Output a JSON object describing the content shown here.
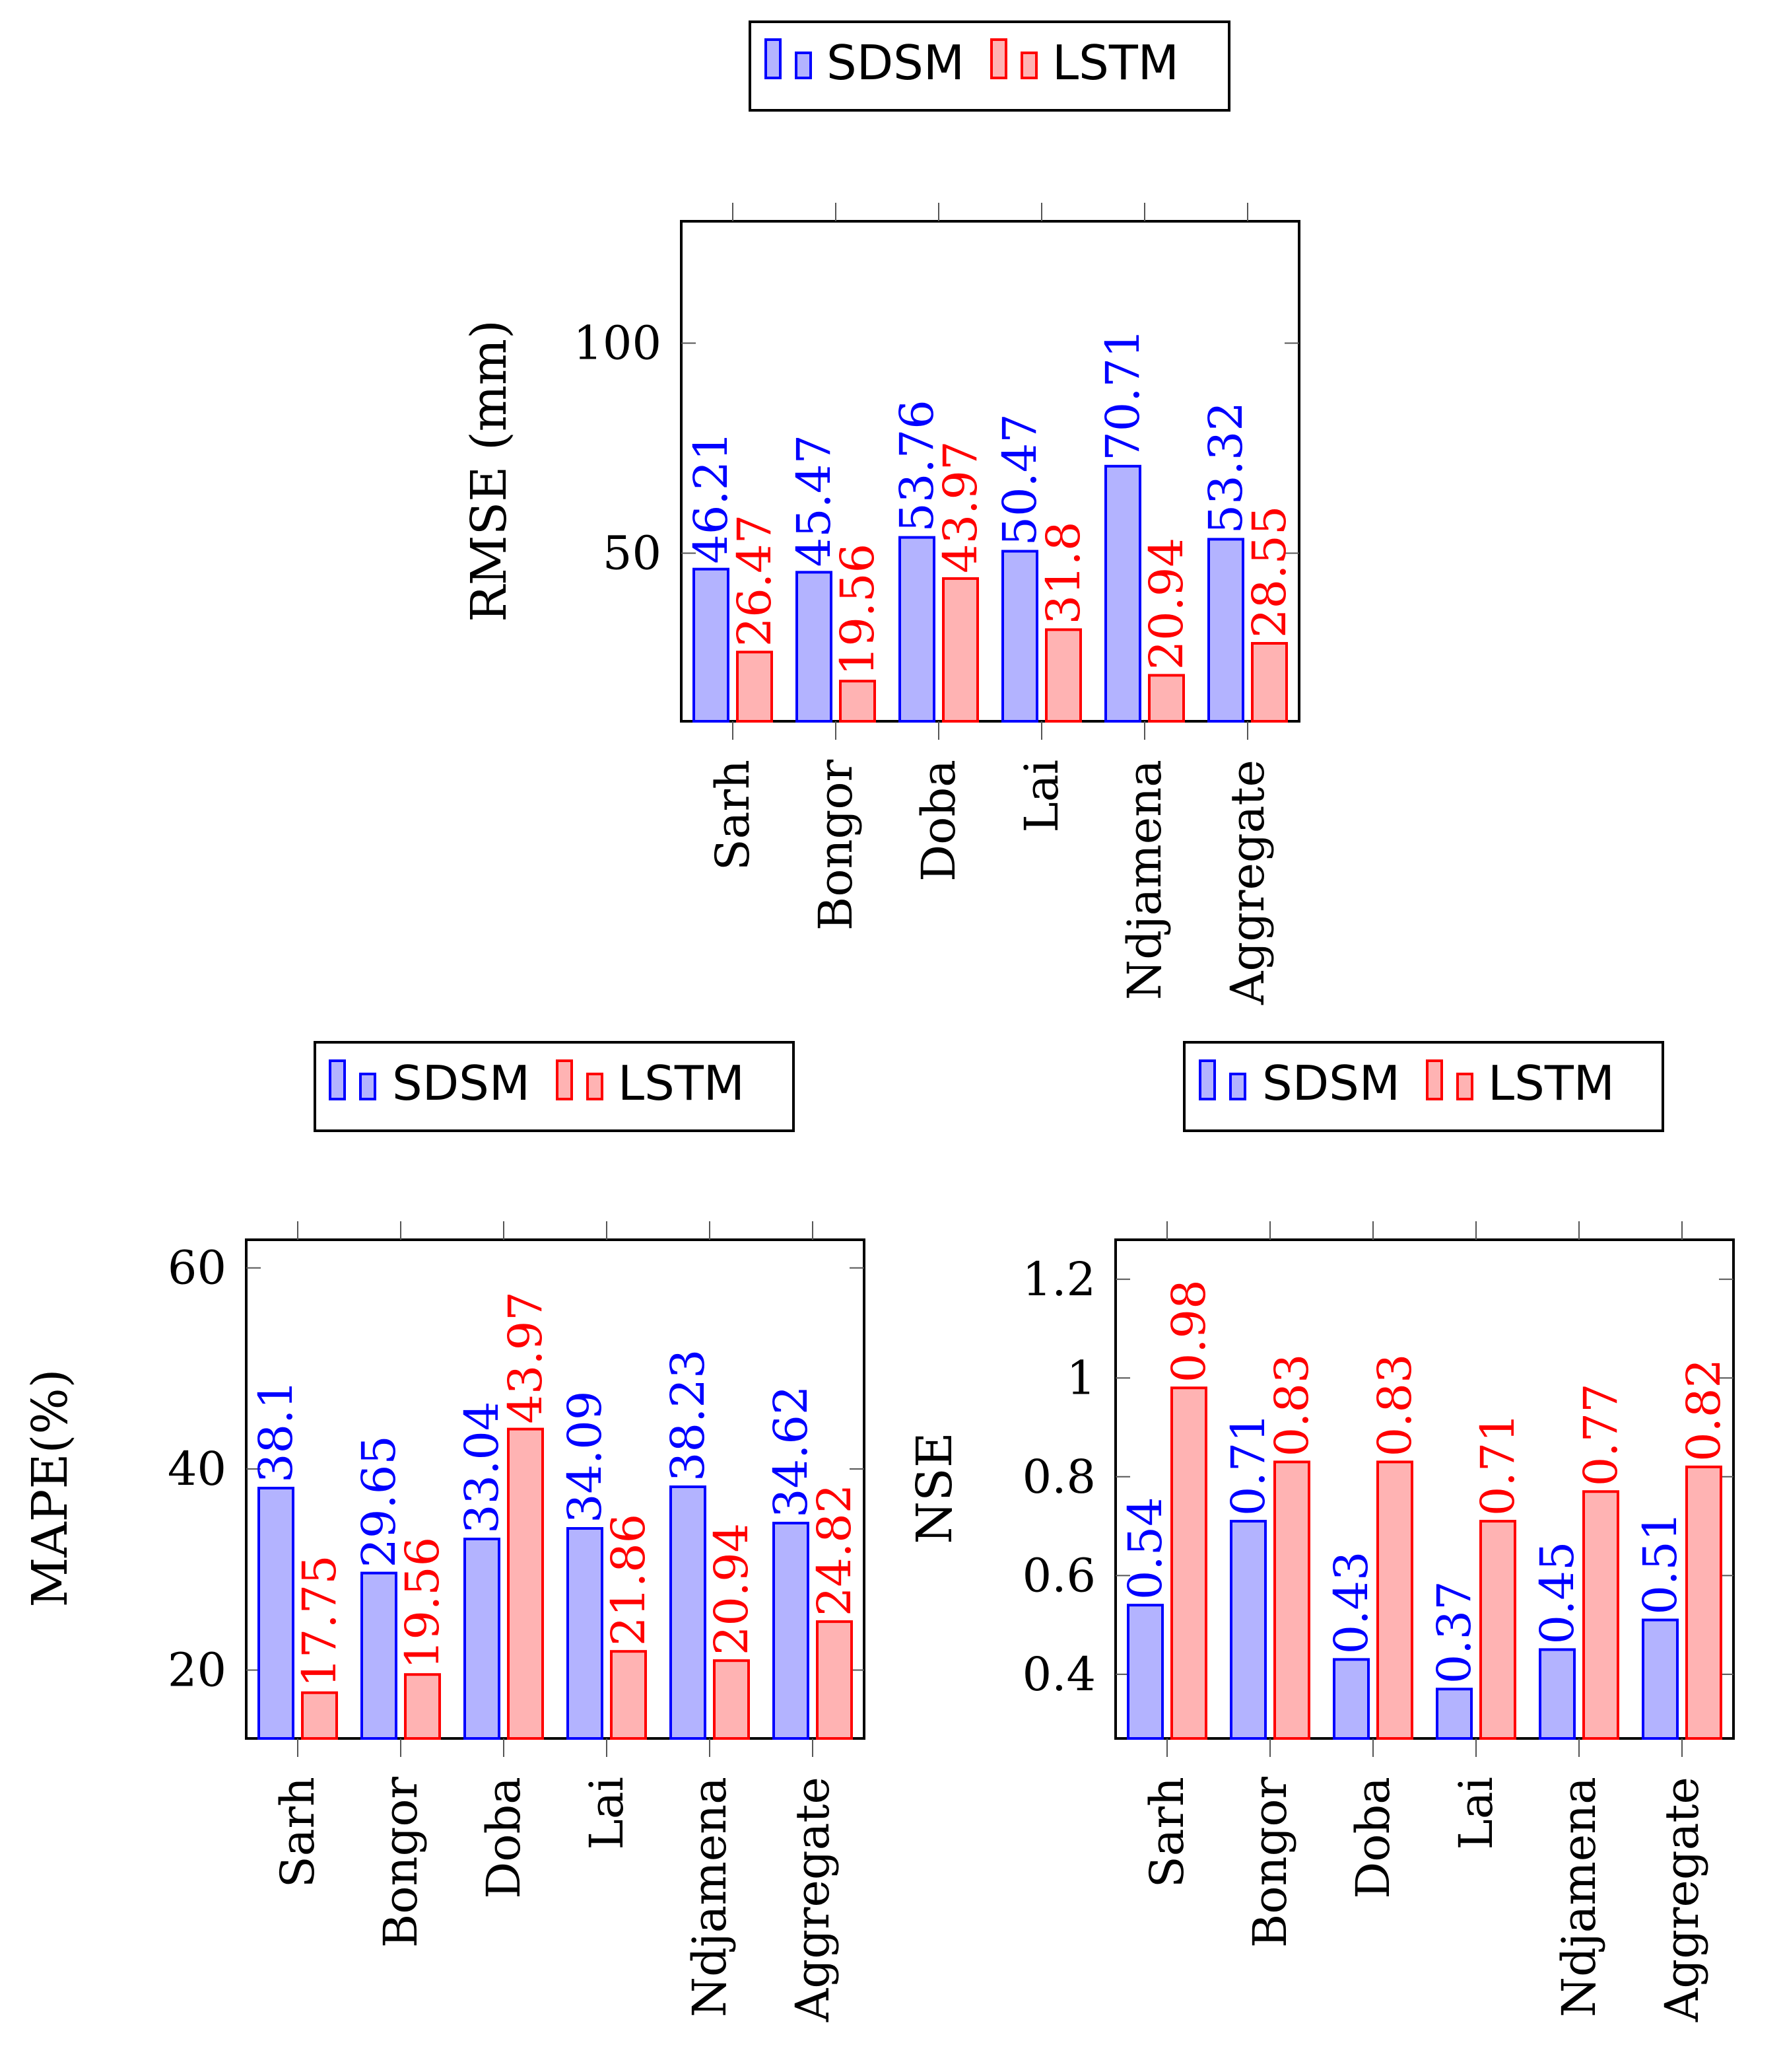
{
  "colors": {
    "sdsm_stroke": "#0000ff",
    "sdsm_fill": "#b3b3ff",
    "lstm_stroke": "#ff0000",
    "lstm_fill": "#ffb3b3",
    "axis": "#000000"
  },
  "legend": {
    "sdsm_label": "SDSM",
    "lstm_label": "LSTM"
  },
  "chart_data": [
    {
      "type": "bar",
      "ylabel": "RMSE (mm)",
      "ylim": [
        10,
        129
      ],
      "yticks": [
        50,
        100
      ],
      "categories": [
        "Sarh",
        "Bongor",
        "Doba",
        "Lai",
        "Ndjamena",
        "Aggregate"
      ],
      "series": [
        {
          "name": "SDSM",
          "values": [
            46.21,
            45.47,
            53.76,
            50.47,
            70.71,
            53.32
          ],
          "labels": [
            "46.21",
            "45.47",
            "53.76",
            "50.47",
            "70.71",
            "53.32"
          ]
        },
        {
          "name": "LSTM",
          "values": [
            26.47,
            19.56,
            43.97,
            31.8,
            20.94,
            28.55
          ],
          "labels": [
            "26.47",
            "19.56",
            "43.97",
            "31.8",
            "20.94",
            "28.55"
          ]
        }
      ]
    },
    {
      "type": "bar",
      "ylabel": "MAPE(%)",
      "ylim": [
        13.2,
        62.8
      ],
      "yticks": [
        20,
        40,
        60
      ],
      "categories": [
        "Sarh",
        "Bongor",
        "Doba",
        "Lai",
        "Ndjamena",
        "Aggregate"
      ],
      "series": [
        {
          "name": "SDSM",
          "values": [
            38.1,
            29.65,
            33.04,
            34.09,
            38.23,
            34.62
          ],
          "labels": [
            "38.1",
            "29.65",
            "33.04",
            "34.09",
            "38.23",
            "34.62"
          ]
        },
        {
          "name": "LSTM",
          "values": [
            17.75,
            19.56,
            43.97,
            21.86,
            20.94,
            24.82
          ],
          "labels": [
            "17.75",
            "19.56",
            "43.97",
            "21.86",
            "20.94",
            "24.82"
          ]
        }
      ]
    },
    {
      "type": "bar",
      "ylabel": "NSE",
      "ylim": [
        0.27,
        1.28
      ],
      "yticks": [
        0.4,
        0.6,
        0.8,
        1,
        1.2
      ],
      "ytick_labels": [
        "0.4",
        "0.6",
        "0.8",
        "1",
        "1.2"
      ],
      "categories": [
        "Sarh",
        "Bongor",
        "Doba",
        "Lai",
        "Ndjamena",
        "Aggregate"
      ],
      "series": [
        {
          "name": "SDSM",
          "values": [
            0.54,
            0.71,
            0.43,
            0.37,
            0.45,
            0.51
          ],
          "labels": [
            "0.54",
            "0.71",
            "0.43",
            "0.37",
            "0.45",
            "0.51"
          ]
        },
        {
          "name": "LSTM",
          "values": [
            0.98,
            0.83,
            0.83,
            0.71,
            0.77,
            0.82
          ],
          "labels": [
            "0.98",
            "0.83",
            "0.83",
            "0.71",
            "0.77",
            "0.82"
          ]
        }
      ]
    }
  ]
}
